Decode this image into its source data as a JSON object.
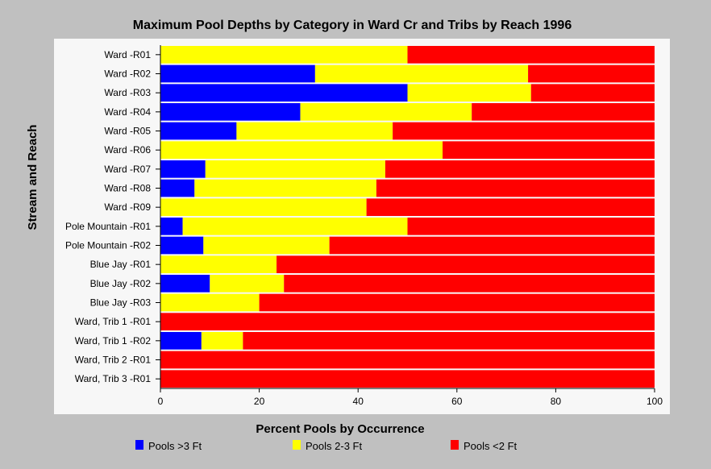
{
  "chart_data": {
    "type": "bar",
    "orientation": "horizontal",
    "stacked": true,
    "title": "Maximum Pool Depths by Category in Ward Cr and Tribs by Reach 1996",
    "xlabel": "Percent Pools by Occurrence",
    "ylabel": "Stream and Reach",
    "xlim": [
      0,
      100
    ],
    "xticks": [
      "0",
      "20",
      "40",
      "60",
      "80",
      "100"
    ],
    "legend_position": "bottom",
    "categories": [
      "Ward -R01",
      "Ward -R02",
      "Ward -R03",
      "Ward -R04",
      "Ward -R05",
      "Ward -R06",
      "Ward -R07",
      "Ward -R08",
      "Ward -R09",
      "Pole Mountain -R01",
      "Pole Mountain -R02",
      "Blue Jay -R01",
      "Blue Jay -R02",
      "Blue Jay -R03",
      "Ward, Trib 1 -R01",
      "Ward, Trib 1 -R02",
      "Ward, Trib 2 -R01",
      "Ward, Trib 3 -R01"
    ],
    "series": [
      {
        "name": "Pools >3 Ft",
        "color": "#0000ff",
        "values": [
          0,
          31.3,
          50,
          28.3,
          15.4,
          0,
          9.1,
          6.9,
          0,
          4.5,
          8.7,
          0,
          10,
          0,
          0,
          8.3,
          0,
          0
        ]
      },
      {
        "name": "Pools 2-3 Ft",
        "color": "#ffff00",
        "values": [
          50,
          43.1,
          25,
          34.7,
          31.6,
          57.1,
          36.4,
          36.8,
          41.7,
          45.5,
          25.5,
          23.5,
          15,
          20,
          0,
          8.4,
          0,
          0
        ]
      },
      {
        "name": "Pools <2 Ft",
        "color": "#ff0000",
        "values": [
          50,
          25.6,
          25,
          37,
          53,
          42.9,
          54.5,
          56.3,
          58.3,
          50,
          65.8,
          76.5,
          75,
          80,
          100,
          83.3,
          100,
          100
        ]
      }
    ]
  }
}
